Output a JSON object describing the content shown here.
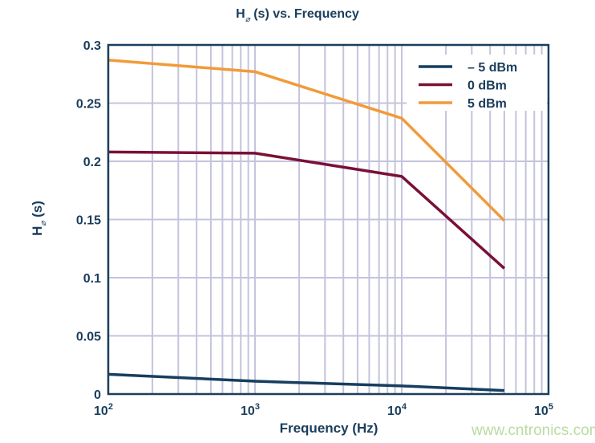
{
  "chart_data": {
    "type": "line",
    "title": "H⌀ (s) vs. Frequency",
    "title_main": "H",
    "title_sub": "⌀",
    "title_rest": " (s) vs. Frequency",
    "xlabel": "Frequency (Hz)",
    "ylabel_main": "H",
    "ylabel_sub": "⌀",
    "ylabel_rest": " (s)",
    "x_scale": "log",
    "xlim": [
      100,
      100000
    ],
    "ylim": [
      0,
      0.3
    ],
    "x_ticks": [
      {
        "base": "10",
        "exp": "2"
      },
      {
        "base": "10",
        "exp": "3"
      },
      {
        "base": "10",
        "exp": "4"
      },
      {
        "base": "10",
        "exp": "5"
      }
    ],
    "y_ticks": [
      "0",
      "0.05",
      "0.1",
      "0.15",
      "0.2",
      "0.25",
      "0.3"
    ],
    "grid": true,
    "legend_position": "top-right",
    "series": [
      {
        "name": "– 5 dBm",
        "color": "#173e5f",
        "x": [
          100,
          1000,
          10000,
          50000
        ],
        "y": [
          0.017,
          0.011,
          0.007,
          0.003
        ]
      },
      {
        "name": "0 dBm",
        "color": "#7a1037",
        "x": [
          100,
          1000,
          10000,
          50000
        ],
        "y": [
          0.208,
          0.207,
          0.187,
          0.108
        ]
      },
      {
        "name": "5 dBm",
        "color": "#f29a3a",
        "x": [
          100,
          1000,
          10000,
          50000
        ],
        "y": [
          0.287,
          0.277,
          0.237,
          0.149
        ]
      }
    ]
  },
  "watermark": "www.cntronics.com"
}
